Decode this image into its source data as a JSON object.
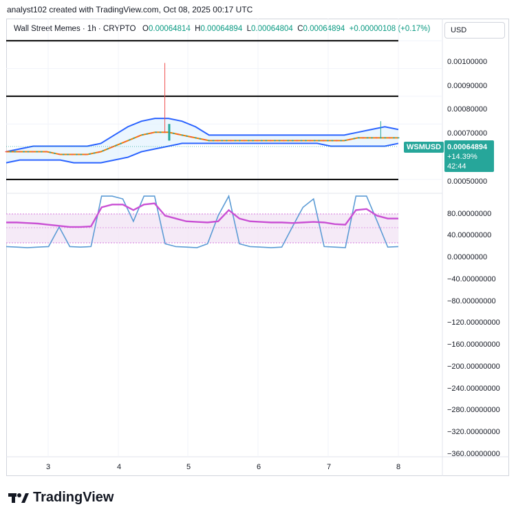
{
  "header": {
    "attribution": "analyst102 created with TradingView.com, Oct 08, 2025 00:17 UTC"
  },
  "legend": {
    "symbol": "Wall Street Memes · 1h · CRYPTO",
    "o_label": "O",
    "o_value": "0.00064814",
    "h_label": "H",
    "h_value": "0.00064894",
    "l_label": "L",
    "l_value": "0.00064804",
    "c_label": "C",
    "c_value": "0.00064894",
    "change": "+0.00000108 (+0.17%)"
  },
  "currency_button": "USD",
  "price_axis": [
    "0.00100000",
    "0.00090000",
    "0.00080000",
    "0.00070000",
    "0.00050000"
  ],
  "osc_axis": [
    "80.00000000",
    "40.00000000",
    "0.00000000",
    "−40.00000000",
    "−80.00000000",
    "−120.00000000",
    "−160.00000000",
    "−200.00000000",
    "−240.00000000",
    "−280.00000000",
    "−320.00000000",
    "−360.00000000"
  ],
  "x_axis": [
    "3",
    "4",
    "5",
    "6",
    "7",
    "8"
  ],
  "tags": {
    "symbol": "WSMUSD",
    "price": "0.00064894",
    "change_pct": "+14.39%",
    "countdown": "42:44"
  },
  "colors": {
    "up": "#26a69a",
    "down": "#ef5350",
    "bb": "#2962ff",
    "ma": "#f57c00",
    "stoch_k": "#5b9bd5",
    "stoch_d": "#c94fd4"
  },
  "branding": {
    "name": "TradingView"
  },
  "chart_data": [
    {
      "type": "candlestick",
      "title": "Wall Street Memes · 1h · CRYPTO",
      "ylim": [
        0.00045,
        0.00108
      ],
      "horizontal_lines": [
        0.001,
        0.0008,
        0.0005
      ],
      "bollinger_upper": [
        0.0006,
        0.00061,
        0.00062,
        0.00062,
        0.00062,
        0.00062,
        0.00062,
        0.00063,
        0.00066,
        0.00069,
        0.00071,
        0.00072,
        0.00072,
        0.00071,
        0.00069,
        0.00066,
        0.00066,
        0.00066,
        0.00066,
        0.00066,
        0.00066,
        0.00066,
        0.00066,
        0.00066,
        0.00066,
        0.00066,
        0.00067,
        0.00068,
        0.00069,
        0.00068
      ],
      "bollinger_mid": [
        0.0006,
        0.0006,
        0.0006,
        0.0006,
        0.00059,
        0.00059,
        0.00059,
        0.0006,
        0.00062,
        0.00064,
        0.00066,
        0.00067,
        0.00067,
        0.00066,
        0.00065,
        0.00064,
        0.00064,
        0.00064,
        0.00064,
        0.00064,
        0.00064,
        0.00064,
        0.00064,
        0.00064,
        0.00064,
        0.00064,
        0.00065,
        0.00065,
        0.00065,
        0.00065
      ],
      "bollinger_lower": [
        0.00056,
        0.00057,
        0.00057,
        0.00057,
        0.00057,
        0.00056,
        0.00056,
        0.00056,
        0.00057,
        0.00058,
        0.0006,
        0.00061,
        0.00062,
        0.00063,
        0.00063,
        0.00063,
        0.00063,
        0.00063,
        0.00063,
        0.00063,
        0.00063,
        0.00063,
        0.00063,
        0.00063,
        0.00062,
        0.00062,
        0.00062,
        0.00062,
        0.00062,
        0.00063
      ],
      "last_price": 0.00064894
    },
    {
      "type": "line",
      "title": "Stochastic RSI",
      "ylim": [
        -370,
        100
      ],
      "series": [
        {
          "values": [
            5,
            4,
            3,
            4,
            5,
            40,
            5,
            4,
            5,
            95,
            95,
            90,
            50,
            95,
            95,
            10,
            5,
            4,
            3,
            10,
            60,
            95,
            10,
            5,
            4,
            3,
            4,
            40,
            75,
            90,
            5,
            4,
            3,
            95,
            95,
            50,
            4,
            5
          ]
        },
        {
          "values": [
            48,
            48,
            47,
            46,
            44,
            42,
            40,
            40,
            41,
            75,
            80,
            80,
            70,
            80,
            82,
            60,
            55,
            50,
            49,
            48,
            50,
            70,
            55,
            50,
            49,
            48,
            48,
            47,
            48,
            49,
            48,
            45,
            44,
            70,
            72,
            60,
            55,
            55
          ]
        }
      ]
    }
  ]
}
